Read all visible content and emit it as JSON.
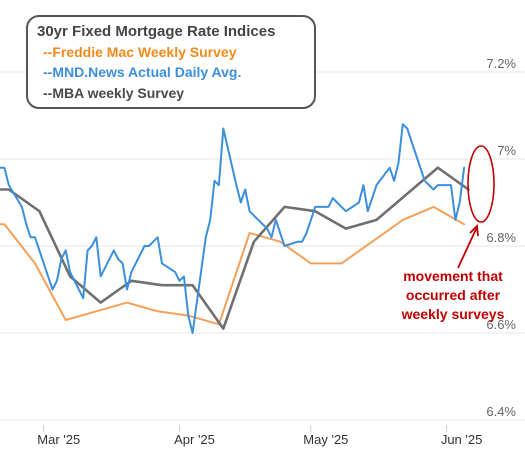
{
  "chart_data": {
    "type": "line",
    "legend": {
      "title": "30yr Fixed Mortgage Rate Indices",
      "placement": "top-left"
    },
    "x_ticks": [
      "Mar '25",
      "Apr '25",
      "May '25",
      "Jun '25"
    ],
    "y_ticks": [
      "6.4%",
      "6.6%",
      "6.8%",
      "7%",
      "7.2%"
    ],
    "ylim": [
      6.4,
      7.2
    ],
    "xlim": [
      "2025-02-19",
      "2025-06-10"
    ],
    "grid": "horizontal",
    "series": [
      {
        "name": "--Freddie Mac Weekly Survey",
        "color": "#f5a05a",
        "label_color": "#f28a1b",
        "line_width": 2,
        "points": [
          [
            "2025-02-19",
            6.85
          ],
          [
            "2025-02-20",
            6.85
          ],
          [
            "2025-02-27",
            6.76
          ],
          [
            "2025-03-06",
            6.63
          ],
          [
            "2025-03-13",
            6.65
          ],
          [
            "2025-03-20",
            6.67
          ],
          [
            "2025-03-27",
            6.65
          ],
          [
            "2025-04-03",
            6.64
          ],
          [
            "2025-04-10",
            6.62
          ],
          [
            "2025-04-17",
            6.83
          ],
          [
            "2025-04-24",
            6.81
          ],
          [
            "2025-05-01",
            6.76
          ],
          [
            "2025-05-08",
            6.76
          ],
          [
            "2025-05-15",
            6.81
          ],
          [
            "2025-05-22",
            6.86
          ],
          [
            "2025-05-29",
            6.89
          ],
          [
            "2025-06-05",
            6.85
          ]
        ]
      },
      {
        "name": "--MND.News Actual Daily Avg.",
        "color": "#3b8fdd",
        "label_color": "#3b8fdd",
        "line_width": 2,
        "points": [
          [
            "2025-02-19",
            6.98
          ],
          [
            "2025-02-20",
            6.98
          ],
          [
            "2025-02-21",
            6.94
          ],
          [
            "2025-02-24",
            6.89
          ],
          [
            "2025-02-25",
            6.85
          ],
          [
            "2025-02-26",
            6.82
          ],
          [
            "2025-02-27",
            6.82
          ],
          [
            "2025-02-28",
            6.79
          ],
          [
            "2025-03-03",
            6.7
          ],
          [
            "2025-03-04",
            6.72
          ],
          [
            "2025-03-05",
            6.77
          ],
          [
            "2025-03-06",
            6.79
          ],
          [
            "2025-03-07",
            6.74
          ],
          [
            "2025-03-10",
            6.68
          ],
          [
            "2025-03-11",
            6.79
          ],
          [
            "2025-03-12",
            6.8
          ],
          [
            "2025-03-13",
            6.82
          ],
          [
            "2025-03-14",
            6.73
          ],
          [
            "2025-03-17",
            6.79
          ],
          [
            "2025-03-18",
            6.77
          ],
          [
            "2025-03-19",
            6.76
          ],
          [
            "2025-03-20",
            6.7
          ],
          [
            "2025-03-21",
            6.74
          ],
          [
            "2025-03-24",
            6.8
          ],
          [
            "2025-03-25",
            6.8
          ],
          [
            "2025-03-26",
            6.81
          ],
          [
            "2025-03-27",
            6.82
          ],
          [
            "2025-03-28",
            6.76
          ],
          [
            "2025-03-31",
            6.74
          ],
          [
            "2025-04-01",
            6.72
          ],
          [
            "2025-04-02",
            6.73
          ],
          [
            "2025-04-03",
            6.64
          ],
          [
            "2025-04-04",
            6.6
          ],
          [
            "2025-04-07",
            6.82
          ],
          [
            "2025-04-08",
            6.86
          ],
          [
            "2025-04-09",
            6.95
          ],
          [
            "2025-04-10",
            6.94
          ],
          [
            "2025-04-11",
            7.07
          ],
          [
            "2025-04-14",
            6.94
          ],
          [
            "2025-04-15",
            6.9
          ],
          [
            "2025-04-16",
            6.93
          ],
          [
            "2025-04-17",
            6.88
          ],
          [
            "2025-04-18",
            6.87
          ],
          [
            "2025-04-21",
            6.84
          ],
          [
            "2025-04-22",
            6.82
          ],
          [
            "2025-04-23",
            6.86
          ],
          [
            "2025-04-24",
            6.83
          ],
          [
            "2025-04-25",
            6.8
          ],
          [
            "2025-04-28",
            6.81
          ],
          [
            "2025-04-29",
            6.81
          ],
          [
            "2025-04-30",
            6.83
          ],
          [
            "2025-05-01",
            6.86
          ],
          [
            "2025-05-02",
            6.89
          ],
          [
            "2025-05-05",
            6.89
          ],
          [
            "2025-05-06",
            6.91
          ],
          [
            "2025-05-07",
            6.9
          ],
          [
            "2025-05-08",
            6.89
          ],
          [
            "2025-05-09",
            6.88
          ],
          [
            "2025-05-12",
            6.9
          ],
          [
            "2025-05-13",
            6.94
          ],
          [
            "2025-05-14",
            6.88
          ],
          [
            "2025-05-15",
            6.91
          ],
          [
            "2025-05-16",
            6.94
          ],
          [
            "2025-05-19",
            6.98
          ],
          [
            "2025-05-20",
            6.95
          ],
          [
            "2025-05-21",
            6.99
          ],
          [
            "2025-05-22",
            7.08
          ],
          [
            "2025-05-23",
            7.07
          ],
          [
            "2025-05-27",
            6.95
          ],
          [
            "2025-05-28",
            6.94
          ],
          [
            "2025-05-29",
            6.93
          ],
          [
            "2025-05-30",
            6.94
          ],
          [
            "2025-06-02",
            6.94
          ],
          [
            "2025-06-03",
            6.86
          ],
          [
            "2025-06-04",
            6.9
          ],
          [
            "2025-06-05",
            6.98
          ]
        ]
      },
      {
        "name": "--MBA weekly Survey",
        "color": "#707070",
        "label_color": "#4a4a4a",
        "line_width": 2.6,
        "points": [
          [
            "2025-02-19",
            6.93
          ],
          [
            "2025-02-21",
            6.93
          ],
          [
            "2025-02-28",
            6.88
          ],
          [
            "2025-03-07",
            6.73
          ],
          [
            "2025-03-14",
            6.67
          ],
          [
            "2025-03-21",
            6.72
          ],
          [
            "2025-03-28",
            6.71
          ],
          [
            "2025-04-04",
            6.71
          ],
          [
            "2025-04-11",
            6.61
          ],
          [
            "2025-04-18",
            6.81
          ],
          [
            "2025-04-25",
            6.89
          ],
          [
            "2025-05-02",
            6.88
          ],
          [
            "2025-05-09",
            6.84
          ],
          [
            "2025-05-16",
            6.86
          ],
          [
            "2025-05-23",
            6.92
          ],
          [
            "2025-05-30",
            6.98
          ],
          [
            "2025-06-06",
            6.93
          ]
        ]
      }
    ],
    "annotations": [
      {
        "text_lines": [
          "movement that",
          "occurred after",
          "weekly surveys"
        ],
        "color": "#c00000"
      }
    ]
  }
}
